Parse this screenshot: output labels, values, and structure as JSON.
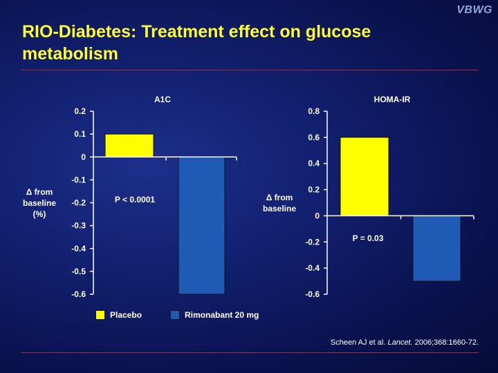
{
  "brand": "VBWG",
  "title": "RIO-Diabetes: Treatment effect on glucose metabolism",
  "citation": {
    "authors": "Scheen AJ et al.",
    "journal": "Lancet.",
    "details": "2006;368:1660-72."
  },
  "legend": {
    "placebo": "Placebo",
    "rimonabant": "Rimonabant 20 mg"
  },
  "colors": {
    "placebo": "#ffff00",
    "rimonabant": "#1f5bb5",
    "title": "#ffff33",
    "rule": "#a52a3a"
  },
  "chart_data": [
    {
      "type": "bar",
      "title": "A1C",
      "ylabel": "Δ from\nbaseline\n(%)",
      "categories": [
        "Placebo",
        "Rimonabant 20 mg"
      ],
      "values": [
        0.1,
        -0.6
      ],
      "ylim": [
        -0.6,
        0.2
      ],
      "yticks": [
        "0.2",
        "0.1",
        "0",
        "-0.1",
        "-0.2",
        "-0.3",
        "-0.4",
        "-0.5",
        "-0.6"
      ],
      "yticks_values": [
        0.2,
        0.1,
        0,
        -0.1,
        -0.2,
        -0.3,
        -0.4,
        -0.5,
        -0.6
      ],
      "annotation": "P < 0.0001"
    },
    {
      "type": "bar",
      "title": "HOMA-IR",
      "ylabel": "Δ from\nbaseline",
      "categories": [
        "Placebo",
        "Rimonabant 20 mg"
      ],
      "values": [
        0.6,
        -0.5
      ],
      "ylim": [
        -0.6,
        0.8
      ],
      "yticks": [
        "0.8",
        "0.6",
        "0.4",
        "0.2",
        "0",
        "-0.2",
        "-0.4",
        "-0.6"
      ],
      "yticks_values": [
        0.8,
        0.6,
        0.4,
        0.2,
        0,
        -0.2,
        -0.4,
        -0.6
      ],
      "annotation": "P = 0.03"
    }
  ]
}
